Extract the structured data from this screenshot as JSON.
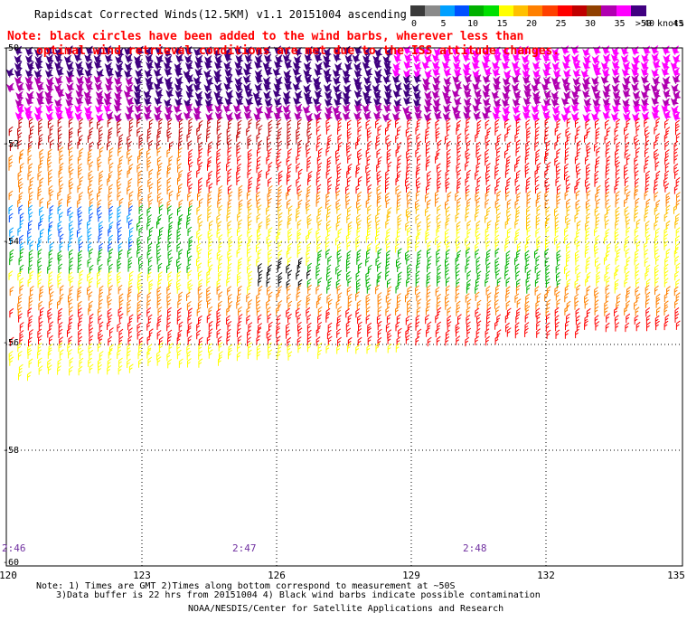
{
  "title": "Rapidscat Corrected Winds(12.5KM) v1.1 20151004 ascending",
  "note_line1": "Note: black circles have been added to the wind barbs, wherever less than",
  "note_line2": "optimal wind retrieval conditions are met due to the ISS attitude changes.",
  "legend": {
    "unit": ">50 knots",
    "ticks": [
      "0",
      "5",
      "10",
      "15",
      "20",
      "25",
      "30",
      "35",
      "40",
      "45"
    ],
    "colors": [
      "#3a3a3a",
      "#8a8a8a",
      "#00a0ff",
      "#0050ff",
      "#00b000",
      "#00e000",
      "#ffff00",
      "#ffc000",
      "#ff8000",
      "#ff4000",
      "#ff0000",
      "#c00000",
      "#904000",
      "#b000b0",
      "#ff00ff",
      "#400080"
    ]
  },
  "axes": {
    "lat_labels": [
      "-50",
      "-52",
      "-54",
      "-56",
      "-58",
      "-60"
    ],
    "lon_labels": [
      "120",
      "123",
      "126",
      "129",
      "132",
      "135"
    ],
    "time_labels": [
      "2:46",
      "2:47",
      "2:48"
    ]
  },
  "footnote_line1": "Note: 1) Times are GMT 2)Times along bottom correspond to measurement at ~50S",
  "footnote_line2": "3)Data buffer is 22 hrs from 20151004 4) Black wind barbs indicate possible contamination",
  "credit": "NOAA/NESDIS/Center for Satellite Applications and Research",
  "palette": {
    "black": "#000000",
    "grey": "#777777",
    "blue": "#0050ff",
    "lightblue": "#00a0ff",
    "green": "#00b000",
    "yellow": "#ffff00",
    "gold": "#ffc000",
    "orange": "#ff8000",
    "red": "#ff0000",
    "darkred": "#c00000",
    "brown": "#904000",
    "purple": "#b000b0",
    "magenta": "#ff00ff",
    "navy": "#400080"
  }
}
